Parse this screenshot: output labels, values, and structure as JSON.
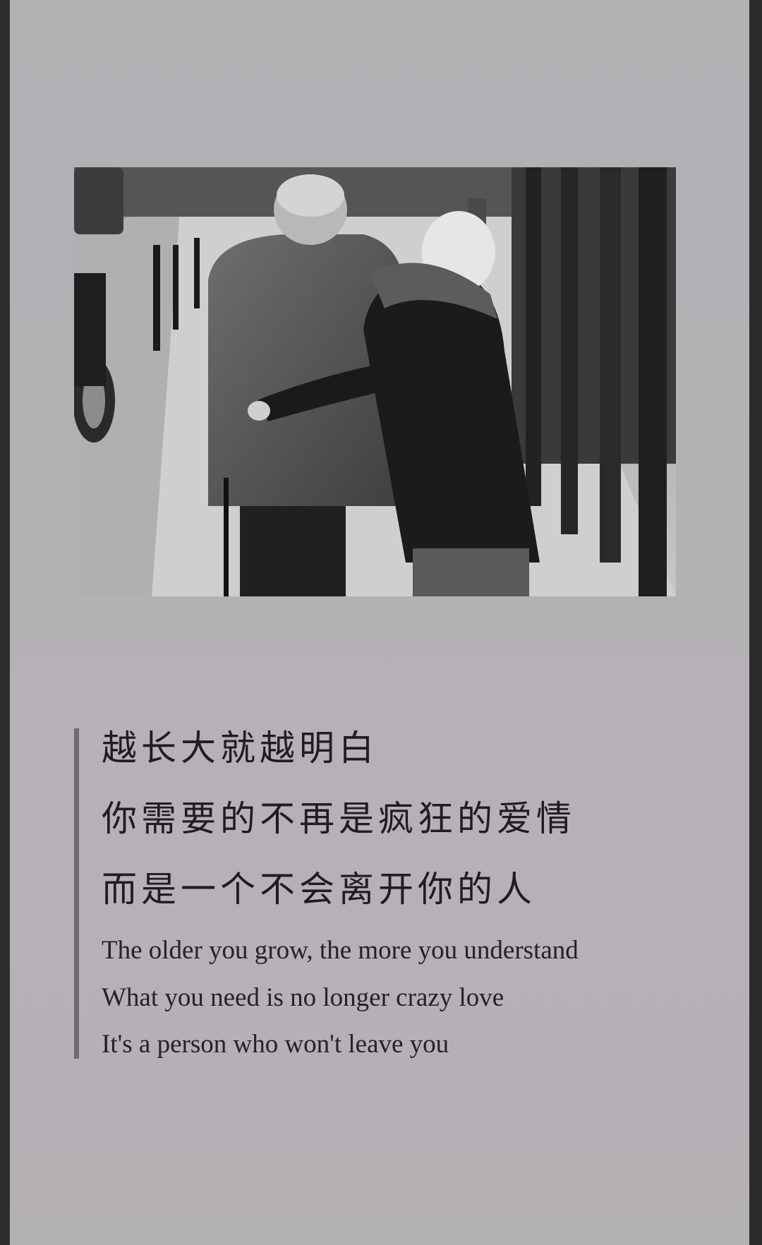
{
  "quote": {
    "zh_lines": [
      "越长大就越明白",
      "你需要的不再是疯狂的爱情",
      "而是一个不会离开你的人"
    ],
    "en_lines": [
      "The older you grow, the more you understand",
      "What you need is no longer crazy love",
      "It's a person who won't leave you"
    ]
  },
  "colors": {
    "background": "#b3b0b4",
    "text": "#1f1d1f",
    "accent_bar": "#6d6b6e"
  }
}
